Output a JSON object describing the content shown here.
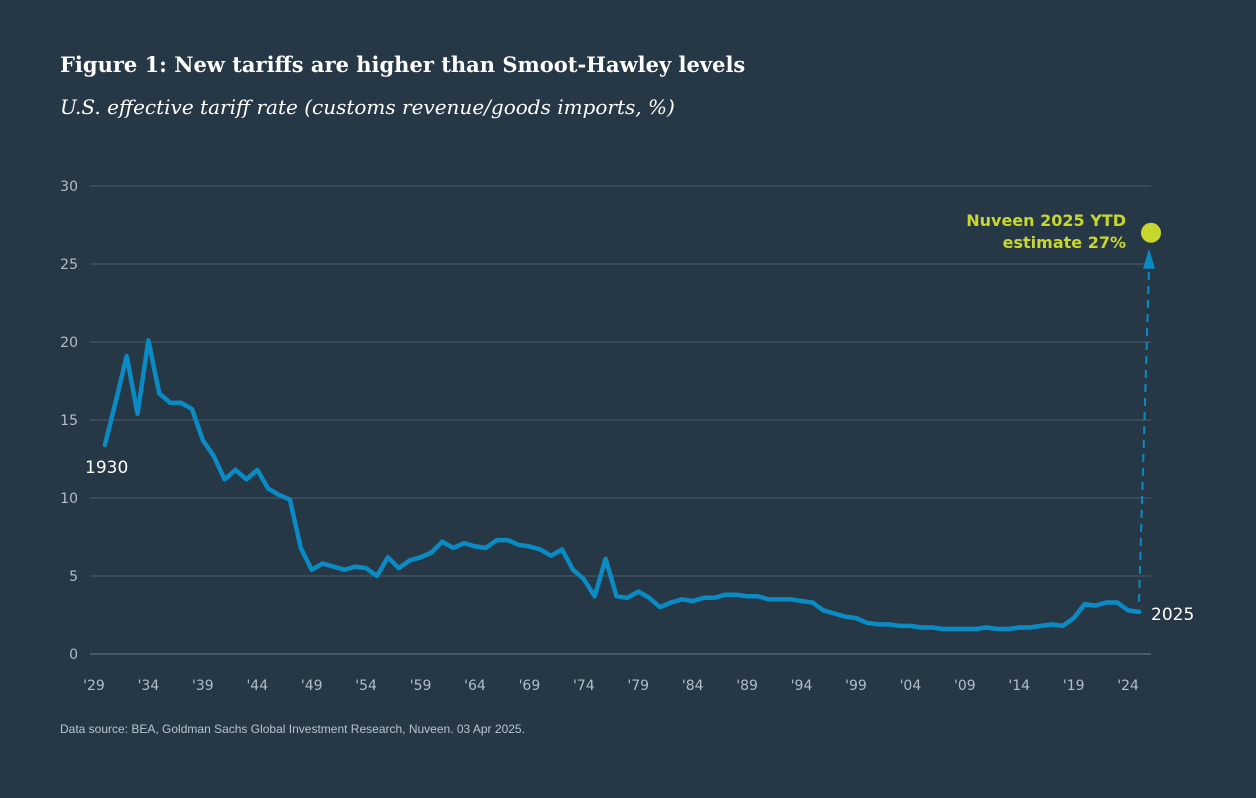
{
  "chart_data": {
    "type": "line",
    "title": "Figure 1: New tariffs are higher than Smoot-Hawley levels",
    "subtitle": "U.S. effective tariff rate (customs revenue/goods imports, %)",
    "source": "Data source: BEA, Goldman Sachs Global Investment Research, Nuveen. 03 Apr 2025.",
    "ylim": [
      0,
      30
    ],
    "xlim": [
      1929,
      2025
    ],
    "y_ticks": [
      0,
      5,
      10,
      15,
      20,
      25,
      30
    ],
    "x_ticks": [
      {
        "year": 1929,
        "label": "'29"
      },
      {
        "year": 1934,
        "label": "'34"
      },
      {
        "year": 1939,
        "label": "'39"
      },
      {
        "year": 1944,
        "label": "'44"
      },
      {
        "year": 1949,
        "label": "'49"
      },
      {
        "year": 1954,
        "label": "'54"
      },
      {
        "year": 1959,
        "label": "'59"
      },
      {
        "year": 1964,
        "label": "'64"
      },
      {
        "year": 1969,
        "label": "'69"
      },
      {
        "year": 1974,
        "label": "'74"
      },
      {
        "year": 1979,
        "label": "'79"
      },
      {
        "year": 1984,
        "label": "'84"
      },
      {
        "year": 1989,
        "label": "'89"
      },
      {
        "year": 1994,
        "label": "'94"
      },
      {
        "year": 1999,
        "label": "'99"
      },
      {
        "year": 2004,
        "label": "'04"
      },
      {
        "year": 2009,
        "label": "'09"
      },
      {
        "year": 2014,
        "label": "'14"
      },
      {
        "year": 2019,
        "label": "'19"
      },
      {
        "year": 2024,
        "label": "'24"
      }
    ],
    "grid": true,
    "series": [
      {
        "name": "U.S. effective tariff rate",
        "color": "#0a8bc4",
        "x": [
          1930,
          1931,
          1932,
          1933,
          1934,
          1935,
          1936,
          1937,
          1938,
          1939,
          1940,
          1941,
          1942,
          1943,
          1944,
          1945,
          1946,
          1947,
          1948,
          1949,
          1950,
          1951,
          1952,
          1953,
          1954,
          1955,
          1956,
          1957,
          1958,
          1959,
          1960,
          1961,
          1962,
          1963,
          1964,
          1965,
          1966,
          1967,
          1968,
          1969,
          1970,
          1971,
          1972,
          1973,
          1974,
          1975,
          1976,
          1977,
          1978,
          1979,
          1980,
          1981,
          1982,
          1983,
          1984,
          1985,
          1986,
          1987,
          1988,
          1989,
          1990,
          1991,
          1992,
          1993,
          1994,
          1995,
          1996,
          1997,
          1998,
          1999,
          2000,
          2001,
          2002,
          2003,
          2004,
          2005,
          2006,
          2007,
          2008,
          2009,
          2010,
          2011,
          2012,
          2013,
          2014,
          2015,
          2016,
          2017,
          2018,
          2019,
          2020,
          2021,
          2022,
          2023,
          2024
        ],
        "values": [
          13.4,
          16.2,
          19.1,
          15.4,
          20.1,
          16.7,
          16.1,
          16.1,
          15.7,
          13.7,
          12.7,
          11.2,
          11.8,
          11.2,
          11.8,
          10.6,
          10.2,
          9.9,
          6.8,
          5.4,
          5.8,
          5.6,
          5.4,
          5.6,
          5.5,
          5.0,
          6.2,
          5.5,
          6.0,
          6.2,
          6.5,
          7.2,
          6.8,
          7.1,
          6.9,
          6.8,
          7.3,
          7.3,
          7.0,
          6.9,
          6.7,
          6.3,
          6.7,
          5.4,
          4.8,
          3.7,
          6.1,
          3.7,
          3.6,
          4.0,
          3.6,
          3.0,
          3.3,
          3.5,
          3.4,
          3.6,
          3.6,
          3.8,
          3.8,
          3.7,
          3.7,
          3.5,
          3.5,
          3.5,
          3.4,
          3.3,
          2.8,
          2.6,
          2.4,
          2.3,
          2.0,
          1.9,
          1.9,
          1.8,
          1.8,
          1.7,
          1.7,
          1.6,
          1.6,
          1.6,
          1.6,
          1.7,
          1.6,
          1.6,
          1.7,
          1.7,
          1.8,
          1.9,
          1.8,
          2.3,
          3.2,
          3.1,
          3.3,
          3.3,
          2.8
        ]
      }
    ],
    "last_point": {
      "year": 2025,
      "value": 2.7
    },
    "estimate": {
      "year": 2025,
      "value": 27,
      "color": "#c8d72e",
      "line1": "Nuveen 2025 YTD",
      "line2": "estimate 27%"
    },
    "annotations": {
      "start_label": "1930",
      "end_label": "2025"
    }
  }
}
